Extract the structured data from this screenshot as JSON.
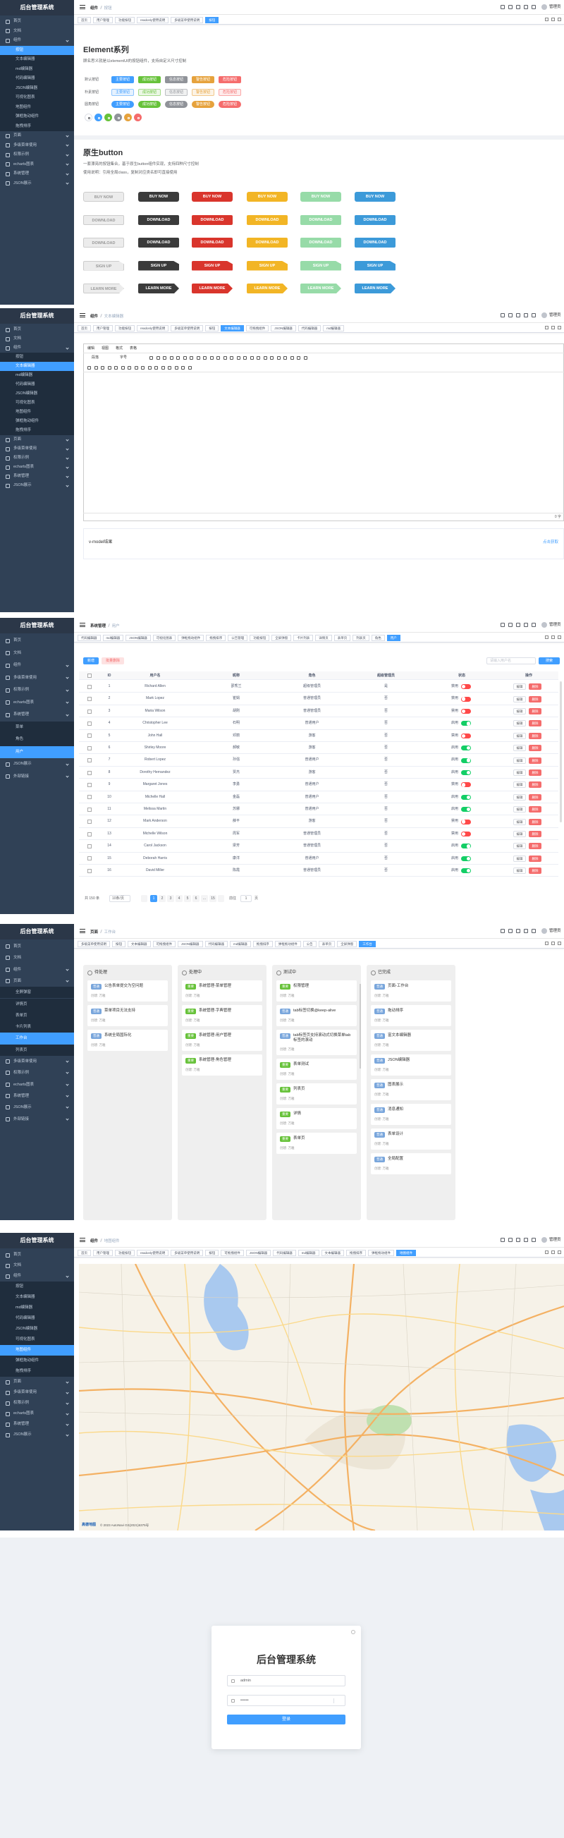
{
  "app_title": "后台管理系统",
  "user": "管理员",
  "panels": [
    {
      "type": "buttons",
      "breadcrumb": [
        "组件",
        "按钮"
      ],
      "tags": [
        "首页",
        "用户管理",
        "功能按钮",
        "readonly使用说明",
        "多级菜单使用说明",
        "按钮"
      ],
      "active_tag": 5,
      "menu": [
        {
          "label": "首页"
        },
        {
          "label": "文档"
        },
        {
          "label": "组件"
        },
        {
          "label": "按钮",
          "level": 2,
          "active": true
        },
        {
          "label": "文本编辑器",
          "level": 2
        },
        {
          "label": "md编辑器",
          "level": 2
        },
        {
          "label": "代码编辑器",
          "level": 2
        },
        {
          "label": "JSON编辑器",
          "level": 2
        },
        {
          "label": "可视化图表",
          "level": 2
        },
        {
          "label": "地图组件",
          "level": 2
        },
        {
          "label": "弹框拖动组件",
          "level": 2
        },
        {
          "label": "拖拽排序",
          "level": 2
        },
        {
          "label": "页面"
        },
        {
          "label": "多级菜单使用"
        },
        {
          "label": "权限示例"
        },
        {
          "label": "echarts图表"
        },
        {
          "label": "系统管理"
        },
        {
          "label": "JSON展示"
        }
      ],
      "content": {
        "title": "Element系列",
        "desc": "顾名思义就是以elementUI的按钮组件，支持自定义尺寸控制",
        "row_labels": [
          "默认按钮",
          "朴素按钮",
          "圆角按钮"
        ],
        "buttons": [
          "主要按钮",
          "成功按钮",
          "信息按钮",
          "警告按钮",
          "危险按钮"
        ],
        "colors": [
          "#409eff",
          "#67c23a",
          "#909399",
          "#e6a23c",
          "#f56c6c"
        ],
        "icon_colors": [
          "#ffffff",
          "#409eff",
          "#67c23a",
          "#909399",
          "#e6a23c",
          "#f56c6c"
        ],
        "native_title": "原生button",
        "native_desc": [
          "一套漂亮的按钮集合，基于原生button组件实现，支持四种尺寸控制",
          "使用说明：引用全局class，复制对应类名即可直接使用"
        ],
        "native_rows": [
          "BUY NOW",
          "DOWNLOAD",
          "DOWNLOAD",
          "SIGN UP",
          "LEARN MORE"
        ],
        "native_colors": [
          "#ececec",
          "#3b3b3b",
          "#d9352c",
          "#f2b525",
          "#97dba8",
          "#3c9ad9"
        ]
      }
    },
    {
      "type": "editor",
      "breadcrumb": [
        "组件",
        "文本编辑器"
      ],
      "tags": [
        "首页",
        "用户管理",
        "功能按钮",
        "readonly使用说明",
        "多级菜单使用说明",
        "按钮",
        "文本编辑器",
        "可拖拽组件",
        "JSON编辑器",
        "代码编辑器",
        "md编辑器"
      ],
      "active_tag": 6,
      "menu": [
        {
          "label": "首页"
        },
        {
          "label": "文档"
        },
        {
          "label": "组件"
        },
        {
          "label": "按钮",
          "level": 2
        },
        {
          "label": "文本编辑器",
          "level": 2,
          "active": true
        },
        {
          "label": "md编辑器",
          "level": 2
        },
        {
          "label": "代码编辑器",
          "level": 2
        },
        {
          "label": "JSON编辑器",
          "level": 2
        },
        {
          "label": "可视化图表",
          "level": 2
        },
        {
          "label": "地图组件",
          "level": 2
        },
        {
          "label": "弹框拖动组件",
          "level": 2
        },
        {
          "label": "拖拽排序",
          "level": 2
        },
        {
          "label": "页面"
        },
        {
          "label": "多级菜单使用"
        },
        {
          "label": "权限示例"
        },
        {
          "label": "echarts图表"
        },
        {
          "label": "系统管理"
        },
        {
          "label": "JSON展示"
        }
      ],
      "content": {
        "menubar": [
          "编辑",
          "视图",
          "格式",
          "表格"
        ],
        "blocks": [
          "段落",
          "字号"
        ],
        "count": "0 字",
        "result_label": "v-model结果",
        "get_btn": "点击获取"
      }
    },
    {
      "type": "table",
      "breadcrumb": [
        "系统管理",
        "用户"
      ],
      "tags": [
        "代码编辑器",
        "md编辑器",
        "JSON编辑器",
        "可视化图表",
        "弹框拖动组件",
        "拖拽排序",
        "公告管理",
        "功能按钮",
        "全屏弹窗",
        "卡片列表",
        "详情页",
        "表单页",
        "列表页",
        "角色",
        "用户"
      ],
      "active_tag": 14,
      "menu": [
        {
          "label": "首页"
        },
        {
          "label": "文档"
        },
        {
          "label": "组件"
        },
        {
          "label": "多级菜单使用"
        },
        {
          "label": "权限示例"
        },
        {
          "label": "echarts图表"
        },
        {
          "label": "系统管理"
        },
        {
          "label": "菜单",
          "level": 2
        },
        {
          "label": "角色",
          "level": 2
        },
        {
          "label": "用户",
          "level": 2,
          "active": true
        },
        {
          "label": "JSON展示"
        },
        {
          "label": "外部链接"
        }
      ],
      "content": {
        "add": "新增",
        "batch_delete": "批量删除",
        "search_placeholder": "请输入用户名",
        "search": "搜索",
        "columns": [
          "ID",
          "用户名",
          "昵称",
          "角色",
          "超级管理员",
          "状态",
          "操作"
        ],
        "rows": [
          [
            1,
            "Richard Allen",
            "邵秀兰",
            "超级管理员",
            "是",
            "禁用"
          ],
          [
            2,
            "Mark Lopez",
            "崔娟",
            "普通管理员",
            "否",
            "禁用"
          ],
          [
            3,
            "Maria Wilson",
            "胡刚",
            "普通管理员",
            "否",
            "禁用"
          ],
          [
            4,
            "Christopher Lee",
            "石明",
            "普通用户",
            "否",
            "启用"
          ],
          [
            5,
            "John Hall",
            "邓丽",
            "游客",
            "否",
            "禁用"
          ],
          [
            6,
            "Shirley Moore",
            "郝敏",
            "游客",
            "否",
            "启用"
          ],
          [
            7,
            "Robert Lopez",
            "孙强",
            "普通用户",
            "否",
            "启用"
          ],
          [
            8,
            "Dorothy Hernandez",
            "贾杰",
            "游客",
            "否",
            "启用"
          ],
          [
            9,
            "Margaret Jones",
            "李勇",
            "普通用户",
            "否",
            "禁用"
          ],
          [
            10,
            "Michelle Hall",
            "金磊",
            "普通用户",
            "否",
            "启用"
          ],
          [
            11,
            "Melissa Martin",
            "苏娜",
            "普通用户",
            "否",
            "启用"
          ],
          [
            12,
            "Mark Anderson",
            "薛平",
            "游客",
            "否",
            "禁用"
          ],
          [
            13,
            "Michelle Wilson",
            "周军",
            "普通管理员",
            "否",
            "禁用"
          ],
          [
            14,
            "Carol Jackson",
            "梁芳",
            "普通管理员",
            "否",
            "启用"
          ],
          [
            15,
            "Deborah Harris",
            "康洋",
            "普通用户",
            "否",
            "启用"
          ],
          [
            16,
            "David Miller",
            "陈霞",
            "普通管理员",
            "否",
            "启用"
          ]
        ],
        "edit": "编辑",
        "delete": "删除",
        "pagination": {
          "total": "共 150 条",
          "page_size": "10条/页",
          "pages": [
            1,
            2,
            3,
            4,
            5,
            6,
            "...",
            15
          ],
          "current": 1,
          "goto": "前往",
          "unit": "页"
        }
      }
    },
    {
      "type": "kanban",
      "breadcrumb": [
        "页面",
        "工作台"
      ],
      "tags": [
        "多级菜单使用说明",
        "按钮",
        "文本编辑器",
        "可拖拽组件",
        "JSON编辑器",
        "代码编辑器",
        "md编辑器",
        "拖拽排序",
        "弹框拖动组件",
        "公告",
        "表单页",
        "全屏弹窗",
        "工作台"
      ],
      "active_tag": 12,
      "menu": [
        {
          "label": "首页"
        },
        {
          "label": "文档"
        },
        {
          "label": "组件"
        },
        {
          "label": "页面"
        },
        {
          "label": "全屏弹窗",
          "level": 2
        },
        {
          "label": "详情页",
          "level": 2
        },
        {
          "label": "表单页",
          "level": 2
        },
        {
          "label": "卡片列表",
          "level": 2
        },
        {
          "label": "工作台",
          "level": 2,
          "active": true
        },
        {
          "label": "列表页",
          "level": 2
        },
        {
          "label": "多级菜单使用"
        },
        {
          "label": "权限示例"
        },
        {
          "label": "echarts图表"
        },
        {
          "label": "系统管理"
        },
        {
          "label": "JSON展示"
        },
        {
          "label": "外部链接"
        }
      ],
      "content": {
        "columns": [
          {
            "title": "待处理",
            "cards": [
              {
                "tag": "普通",
                "tag_color": "#79a6dc",
                "title": "公告表单提交为空问题",
                "meta": "创建: 万雅"
              },
              {
                "tag": "普通",
                "tag_color": "#79a6dc",
                "title": "菜单项目无法支持",
                "meta": "创建: 万雅"
              },
              {
                "tag": "普通",
                "tag_color": "#79a6dc",
                "title": "系统全局国际化",
                "meta": "创建: 万雅"
              }
            ]
          },
          {
            "title": "处理中",
            "cards": [
              {
                "tag": "重要",
                "tag_color": "#67c23a",
                "title": "系统管理-菜单管理",
                "meta": "创建: 万雅"
              },
              {
                "tag": "重要",
                "tag_color": "#67c23a",
                "title": "系统管理-字典管理",
                "meta": "创建: 万雅"
              },
              {
                "tag": "重要",
                "tag_color": "#67c23a",
                "title": "系统管理-用户管理",
                "meta": "创建: 万雅"
              },
              {
                "tag": "重要",
                "tag_color": "#67c23a",
                "title": "系统管理-角色管理",
                "meta": "创建: 万雅"
              }
            ]
          },
          {
            "title": "测试中",
            "cards": [
              {
                "tag": "重要",
                "tag_color": "#67c23a",
                "title": "权限管理",
                "meta": "创建: 万雅"
              },
              {
                "tag": "普通",
                "tag_color": "#79a6dc",
                "title": "tab标签切换@keep-alive",
                "meta": "创建: 万雅"
              },
              {
                "tag": "普通",
                "tag_color": "#79a6dc",
                "title": "tab标签页支持滚动式切换菜单tab标签的滚动",
                "meta": "创建: 万雅"
              },
              {
                "tag": "重要",
                "tag_color": "#67c23a",
                "title": "表单测试",
                "meta": "创建: 万雅"
              },
              {
                "tag": "重要",
                "tag_color": "#67c23a",
                "title": "列表页",
                "meta": "创建: 万雅"
              },
              {
                "tag": "重要",
                "tag_color": "#67c23a",
                "title": "详情",
                "meta": "创建: 万雅"
              },
              {
                "tag": "重要",
                "tag_color": "#67c23a",
                "title": "表单页",
                "meta": "创建: 万雅"
              }
            ]
          },
          {
            "title": "已完成",
            "cards": [
              {
                "tag": "普通",
                "tag_color": "#79a6dc",
                "title": "页面-工作台",
                "meta": "创建: 万雅"
              },
              {
                "tag": "普通",
                "tag_color": "#79a6dc",
                "title": "拖动排序",
                "meta": "创建: 万雅"
              },
              {
                "tag": "普通",
                "tag_color": "#79a6dc",
                "title": "富文本编辑器",
                "meta": "创建: 万雅"
              },
              {
                "tag": "普通",
                "tag_color": "#79a6dc",
                "title": "JSON编辑器",
                "meta": "创建: 万雅"
              },
              {
                "tag": "普通",
                "tag_color": "#79a6dc",
                "title": "图表展示",
                "meta": "创建: 万雅"
              },
              {
                "tag": "普通",
                "tag_color": "#79a6dc",
                "title": "消息通知",
                "meta": "创建: 万雅"
              },
              {
                "tag": "普通",
                "tag_color": "#79a6dc",
                "title": "表单设计",
                "meta": "创建: 万雅"
              },
              {
                "tag": "普通",
                "tag_color": "#79a6dc",
                "title": "全局配置",
                "meta": "创建: 万雅"
              }
            ]
          }
        ]
      }
    },
    {
      "type": "map",
      "breadcrumb": [
        "组件",
        "地图组件"
      ],
      "tags": [
        "首页",
        "用户管理",
        "功能按钮",
        "readonly使用说明",
        "多级菜单使用说明",
        "按钮",
        "可拖拽组件",
        "JSON编辑器",
        "代码编辑器",
        "md编辑器",
        "文本编辑器",
        "拖拽排序",
        "弹框拖动组件",
        "地图组件"
      ],
      "active_tag": 13,
      "menu": [
        {
          "label": "首页"
        },
        {
          "label": "文档"
        },
        {
          "label": "组件"
        },
        {
          "label": "按钮",
          "level": 2
        },
        {
          "label": "文本编辑器",
          "level": 2
        },
        {
          "label": "md编辑器",
          "level": 2
        },
        {
          "label": "代码编辑器",
          "level": 2
        },
        {
          "label": "JSON编辑器",
          "level": 2
        },
        {
          "label": "可视化图表",
          "level": 2
        },
        {
          "label": "地图组件",
          "level": 2,
          "active": true
        },
        {
          "label": "弹框拖动组件",
          "level": 2
        },
        {
          "label": "拖拽排序",
          "level": 2
        },
        {
          "label": "页面"
        },
        {
          "label": "多级菜单使用"
        },
        {
          "label": "权限示例"
        },
        {
          "label": "echarts图表"
        },
        {
          "label": "系统管理"
        },
        {
          "label": "JSON展示"
        }
      ],
      "content": {
        "logo": "高德地图",
        "attribution": "© 2023 AutoNavi GS(2021)6375号"
      }
    }
  ],
  "login": {
    "title": "后台管理系统",
    "username": "admin",
    "password": "••••••",
    "submit": "登录"
  }
}
